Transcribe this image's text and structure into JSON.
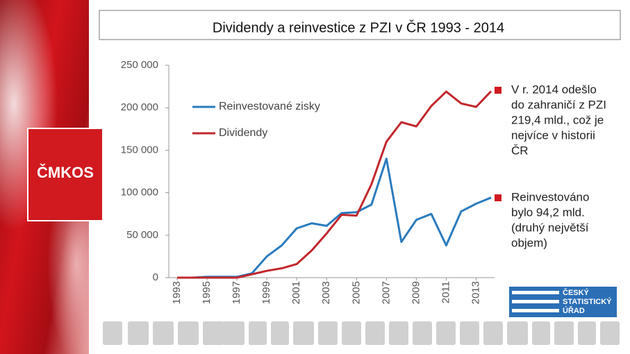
{
  "slide": {
    "title": "Dividendy a reinvestice z PZI v ČR 1993 - 2014",
    "logo_text": "ČMKOS",
    "notes": [
      [
        "V r. 2014 odešlo",
        "do zahraničí z PZI",
        "219,4 mld., což je",
        "nejvíce v historii",
        "ČR"
      ],
      [
        "Reinvestováno",
        "bylo 94,2 mld.",
        "(druhý největší",
        "objem)"
      ]
    ],
    "csu_logo": [
      "ČESKÝ",
      "STATISTICKÝ",
      "ÚŘAD"
    ]
  },
  "chart_data": {
    "type": "line",
    "x": [
      1993,
      1994,
      1995,
      1996,
      1997,
      1998,
      1999,
      2000,
      2001,
      2002,
      2003,
      2004,
      2005,
      2006,
      2007,
      2008,
      2009,
      2010,
      2011,
      2012,
      2013,
      2014
    ],
    "series": [
      {
        "name": "Reinvestované zisky",
        "color": "#2b7bbd",
        "values": [
          0,
          0,
          1000,
          1000,
          1000,
          5000,
          25000,
          38000,
          58000,
          64000,
          61000,
          76000,
          77000,
          86000,
          140000,
          42000,
          68000,
          75000,
          38000,
          78000,
          87000,
          94200
        ]
      },
      {
        "name": "Dividendy",
        "color": "#c1272d",
        "values": [
          0,
          0,
          0,
          0,
          0,
          4000,
          8000,
          11000,
          16000,
          32000,
          52000,
          74000,
          73000,
          110000,
          160000,
          183000,
          178000,
          202000,
          219000,
          205000,
          201000,
          219400
        ]
      }
    ],
    "xlim": [
      1993,
      2014
    ],
    "xticks": [
      1993,
      1995,
      1997,
      1999,
      2001,
      2003,
      2005,
      2007,
      2009,
      2011,
      2013
    ],
    "ylim": [
      0,
      250000
    ],
    "yticks": [
      {
        "value": 0,
        "label": "0"
      },
      {
        "value": 50000,
        "label": "50 000"
      },
      {
        "value": 100000,
        "label": "100 000"
      },
      {
        "value": 150000,
        "label": "150 000"
      },
      {
        "value": 200000,
        "label": "200 000"
      },
      {
        "value": 250000,
        "label": "250 000"
      }
    ],
    "legend": "top-left"
  }
}
